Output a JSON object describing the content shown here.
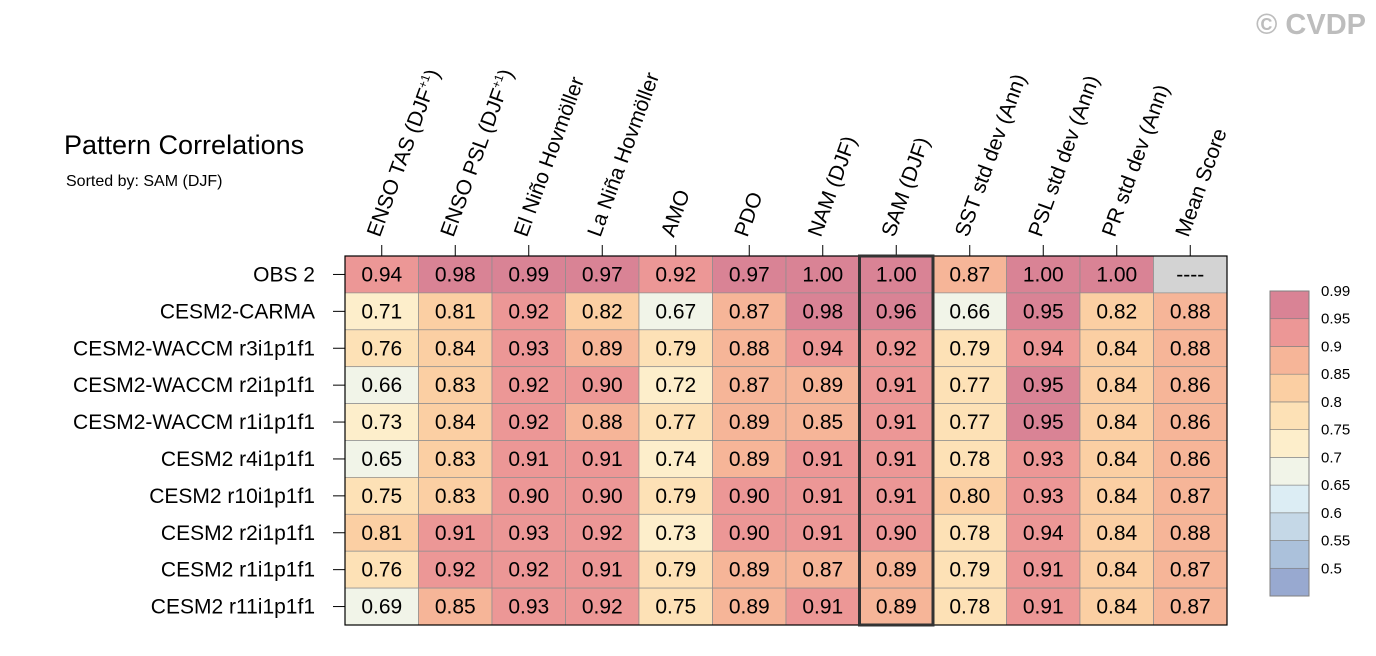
{
  "watermark": "© CVDP",
  "chart_data": {
    "type": "heatmap",
    "title": "Pattern Correlations",
    "subtitle": "Sorted by: SAM (DJF)",
    "columns": [
      "ENSO TAS (DJF+1)",
      "ENSO PSL (DJF+1)",
      "El Niño Hovmöller",
      "La Niña Hovmöller",
      "AMO",
      "PDO",
      "NAM (DJF)",
      "SAM (DJF)",
      "SST std dev (Ann)",
      "PSL std dev (Ann)",
      "PR std dev (Ann)",
      "Mean Score"
    ],
    "rows": [
      "OBS 2",
      "CESM2-CARMA",
      "CESM2-WACCM r3i1p1f1",
      "CESM2-WACCM r2i1p1f1",
      "CESM2-WACCM r1i1p1f1",
      "CESM2 r4i1p1f1",
      "CESM2 r10i1p1f1",
      "CESM2 r2i1p1f1",
      "CESM2 r1i1p1f1",
      "CESM2 r11i1p1f1"
    ],
    "cells": [
      [
        "0.94",
        "0.98",
        "0.99",
        "0.97",
        "0.92",
        "0.97",
        "1.00",
        "1.00",
        "0.87",
        "1.00",
        "1.00",
        "----"
      ],
      [
        "0.71",
        "0.81",
        "0.92",
        "0.82",
        "0.67",
        "0.87",
        "0.98",
        "0.96",
        "0.66",
        "0.95",
        "0.82",
        "0.88"
      ],
      [
        "0.76",
        "0.84",
        "0.93",
        "0.89",
        "0.79",
        "0.88",
        "0.94",
        "0.92",
        "0.79",
        "0.94",
        "0.84",
        "0.88"
      ],
      [
        "0.66",
        "0.83",
        "0.92",
        "0.90",
        "0.72",
        "0.87",
        "0.89",
        "0.91",
        "0.77",
        "0.95",
        "0.84",
        "0.86"
      ],
      [
        "0.73",
        "0.84",
        "0.92",
        "0.88",
        "0.77",
        "0.89",
        "0.85",
        "0.91",
        "0.77",
        "0.95",
        "0.84",
        "0.86"
      ],
      [
        "0.65",
        "0.83",
        "0.91",
        "0.91",
        "0.74",
        "0.89",
        "0.91",
        "0.91",
        "0.78",
        "0.93",
        "0.84",
        "0.86"
      ],
      [
        "0.75",
        "0.83",
        "0.90",
        "0.90",
        "0.79",
        "0.90",
        "0.91",
        "0.91",
        "0.80",
        "0.93",
        "0.84",
        "0.87"
      ],
      [
        "0.81",
        "0.91",
        "0.93",
        "0.92",
        "0.73",
        "0.90",
        "0.91",
        "0.90",
        "0.78",
        "0.94",
        "0.84",
        "0.88"
      ],
      [
        "0.76",
        "0.92",
        "0.92",
        "0.91",
        "0.79",
        "0.89",
        "0.87",
        "0.89",
        "0.79",
        "0.91",
        "0.84",
        "0.87"
      ],
      [
        "0.69",
        "0.85",
        "0.93",
        "0.92",
        "0.75",
        "0.89",
        "0.91",
        "0.89",
        "0.78",
        "0.91",
        "0.84",
        "0.87"
      ]
    ],
    "highlight_column": "SAM (DJF)",
    "missing_color": "#d3d3d3",
    "colorbar": {
      "levels": [
        "0.5",
        "0.55",
        "0.6",
        "0.65",
        "0.7",
        "0.75",
        "0.8",
        "0.85",
        "0.9",
        "0.95",
        "0.99"
      ],
      "colors": [
        "#98a9d0",
        "#abc1db",
        "#c5d8e7",
        "#dcedf4",
        "#f1f4e8",
        "#fdeecb",
        "#fde1b6",
        "#fbcfa3",
        "#f6b598",
        "#ec9796",
        "#d98395"
      ]
    }
  }
}
